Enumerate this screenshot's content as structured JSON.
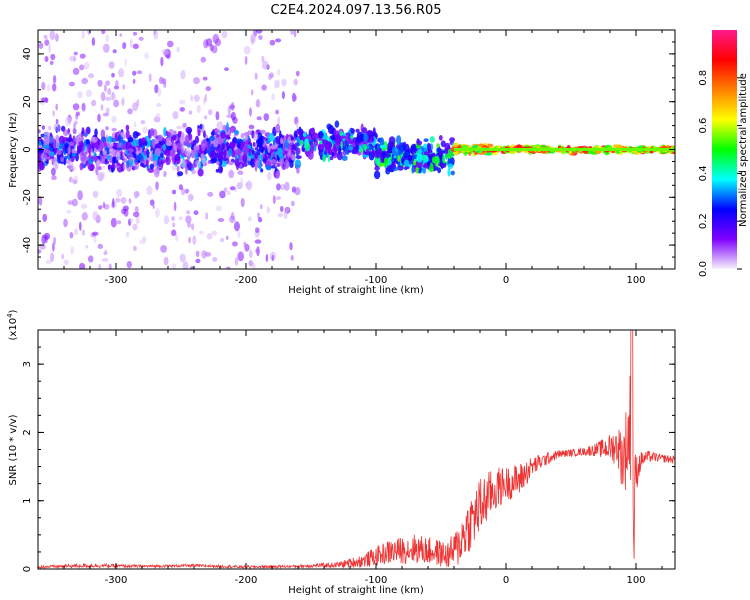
{
  "chart_data": [
    {
      "type": "heatmap",
      "title": "C2E4.2024.097.13.56.R05",
      "xlabel": "Height of straight line (km)",
      "ylabel": "Frequency (Hz)",
      "xlim": [
        -360,
        130
      ],
      "ylim": [
        -50,
        50
      ],
      "x_ticks": [
        -300,
        -200,
        -100,
        0,
        100
      ],
      "y_ticks": [
        -40,
        -20,
        0,
        20,
        40
      ],
      "colorbar": {
        "label": "Normalized spectral amplitude",
        "range": [
          0.0,
          1.0
        ],
        "ticks": [
          "0.0",
          "0.2",
          "0.4",
          "0.6",
          "0.8"
        ],
        "tick_values": [
          0.0,
          0.2,
          0.4,
          0.6,
          0.8
        ],
        "colors": [
          "#f6f2fb",
          "#8000ff",
          "#0000ff",
          "#00ffff",
          "#00ff00",
          "#ffff00",
          "#ff8000",
          "#ff0000",
          "#ff1a8c"
        ]
      },
      "bands": [
        {
          "x": [
            -360,
            -160
          ],
          "center": 0,
          "halfwidth": 12,
          "density": "high",
          "level": [
            0.05,
            0.35
          ]
        },
        {
          "x": [
            -360,
            -160
          ],
          "center": 0,
          "halfwidth": 50,
          "density": "sparse",
          "level": [
            0.02,
            0.15
          ]
        },
        {
          "x": [
            -160,
            -100
          ],
          "center": 3,
          "halfwidth": 9,
          "density": "high",
          "level": [
            0.1,
            0.45
          ]
        },
        {
          "x": [
            -100,
            -40
          ],
          "center": -3,
          "halfwidth": 9,
          "density": "high",
          "level": [
            0.15,
            0.55
          ]
        },
        {
          "x": [
            -40,
            0
          ],
          "center": 0,
          "halfwidth": 3,
          "density": "line",
          "level": [
            0.45,
            0.9
          ]
        },
        {
          "x": [
            0,
            130
          ],
          "center": 0,
          "halfwidth": 2,
          "density": "line",
          "level": [
            0.5,
            0.95
          ]
        }
      ]
    },
    {
      "type": "line",
      "xlabel": "Height of straight line (km)",
      "ylabel": "SNR (10 * v/v)",
      "y_multiplier": "(x10",
      "y_multiplier_exp": "4",
      "y_multiplier_close": ")",
      "xlim": [
        -360,
        130
      ],
      "ylim": [
        0,
        3.5
      ],
      "x_ticks": [
        -300,
        -200,
        -100,
        0,
        100
      ],
      "y_ticks": [
        0,
        1,
        2,
        3
      ],
      "color": "#ee3333",
      "series": [
        {
          "name": "SNR",
          "x": [
            -360,
            -320,
            -280,
            -240,
            -200,
            -160,
            -130,
            -110,
            -90,
            -70,
            -55,
            -45,
            -38,
            -30,
            -20,
            -12,
            -5,
            0,
            10,
            20,
            30,
            40,
            50,
            60,
            70,
            80,
            86,
            90,
            94,
            96,
            98,
            100,
            104,
            110,
            120,
            130
          ],
          "y": [
            0.03,
            0.05,
            0.04,
            0.05,
            0.03,
            0.04,
            0.06,
            0.12,
            0.25,
            0.3,
            0.25,
            0.2,
            0.3,
            0.6,
            0.9,
            1.1,
            1.2,
            1.25,
            1.3,
            1.5,
            1.6,
            1.68,
            1.7,
            1.72,
            1.75,
            1.78,
            1.8,
            1.6,
            1.9,
            2.2,
            1.0,
            1.4,
            1.6,
            1.65,
            1.62,
            1.6
          ],
          "noise": [
            0.02,
            0.03,
            0.02,
            0.02,
            0.02,
            0.02,
            0.04,
            0.1,
            0.18,
            0.22,
            0.2,
            0.2,
            0.3,
            0.4,
            0.45,
            0.35,
            0.3,
            0.25,
            0.25,
            0.15,
            0.1,
            0.06,
            0.05,
            0.06,
            0.1,
            0.2,
            0.3,
            0.5,
            0.7,
            0.9,
            0.8,
            0.3,
            0.12,
            0.08,
            0.06,
            0.06
          ]
        }
      ]
    }
  ]
}
